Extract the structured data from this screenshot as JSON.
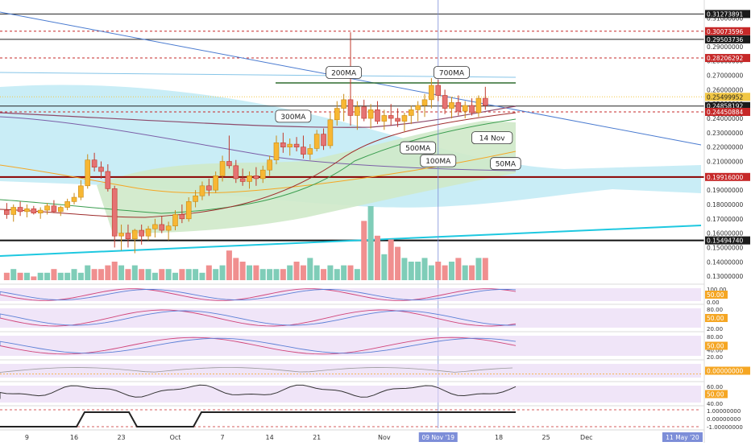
{
  "chart_data": {
    "type": "candlestick",
    "title": "",
    "ylim": [
      0.125,
      0.318
    ],
    "x_tick_labels": [
      {
        "label": "9",
        "day": 9
      },
      {
        "label": "16",
        "day": 16
      },
      {
        "label": "23",
        "day": 23
      },
      {
        "label": "Oct",
        "day": 31
      },
      {
        "label": "7",
        "day": 38
      },
      {
        "label": "14",
        "day": 45
      },
      {
        "label": "21",
        "day": 52
      },
      {
        "label": "Nov",
        "day": 62
      },
      {
        "label": "18",
        "day": 79
      },
      {
        "label": "25",
        "day": 86
      },
      {
        "label": "Dec",
        "day": 92
      }
    ],
    "x_range_days": [
      5,
      109
    ],
    "crosshair": {
      "date_label": "09 Nov '19",
      "day": 70
    },
    "far_date_label": {
      "text": "11 May '20"
    },
    "y_ticks": [
      "0.31000000",
      "0.30000000",
      "0.29000000",
      "0.28000000",
      "0.27000000",
      "0.26000000",
      "0.25000000",
      "0.24000000",
      "0.23000000",
      "0.22000000",
      "0.21000000",
      "0.20000000",
      "0.19000000",
      "0.18000000",
      "0.17000000",
      "0.16000000",
      "0.15000000",
      "0.14000000",
      "0.13000000"
    ],
    "horizontal_levels": [
      {
        "label": "0.31273891",
        "value": 0.31273891,
        "style": "black-solid",
        "badge": "dark"
      },
      {
        "label": "0.30073596",
        "value": 0.30073596,
        "style": "red-dashed",
        "badge": "red"
      },
      {
        "label": "0.29503736",
        "value": 0.29503736,
        "style": "black-solid",
        "badge": "dark"
      },
      {
        "label": "0.28206292",
        "value": 0.28206292,
        "style": "red-dashed",
        "badge": "red"
      },
      {
        "label": "0.25499952",
        "value": 0.25499952,
        "style": "yellow-dotted",
        "badge": "yellow"
      },
      {
        "label": "0.24858192",
        "value": 0.24858192,
        "style": "black-solid",
        "badge": "dark"
      },
      {
        "label": "0.24450884",
        "value": 0.24450884,
        "style": "red-dashed",
        "badge": "red"
      },
      {
        "label": "0.19916000",
        "value": 0.19916,
        "style": "darkred-solid",
        "badge": "red"
      },
      {
        "label": "0.15494740",
        "value": 0.1549474,
        "style": "black-thick",
        "badge": "dark"
      }
    ],
    "annotations": [
      {
        "text": "200MA",
        "day": 56,
        "value": 0.272
      },
      {
        "text": "700MA",
        "day": 72,
        "value": 0.272
      },
      {
        "text": "300MA",
        "day": 48.5,
        "value": 0.2415
      },
      {
        "text": "500MA",
        "day": 67,
        "value": 0.2195
      },
      {
        "text": "14 Nov",
        "day": 78,
        "value": 0.2265
      },
      {
        "text": "100MA",
        "day": 70,
        "value": 0.2105
      },
      {
        "text": "50MA",
        "day": 80,
        "value": 0.2085
      }
    ],
    "candles": [
      {
        "day": 6,
        "o": 0.176,
        "h": 0.181,
        "l": 0.17,
        "c": 0.173
      },
      {
        "day": 7,
        "o": 0.173,
        "h": 0.18,
        "l": 0.168,
        "c": 0.178
      },
      {
        "day": 8,
        "o": 0.178,
        "h": 0.182,
        "l": 0.172,
        "c": 0.175
      },
      {
        "day": 9,
        "o": 0.175,
        "h": 0.18,
        "l": 0.171,
        "c": 0.177
      },
      {
        "day": 10,
        "o": 0.177,
        "h": 0.179,
        "l": 0.173,
        "c": 0.174
      },
      {
        "day": 11,
        "o": 0.174,
        "h": 0.178,
        "l": 0.17,
        "c": 0.176
      },
      {
        "day": 12,
        "o": 0.176,
        "h": 0.181,
        "l": 0.173,
        "c": 0.179
      },
      {
        "day": 13,
        "o": 0.179,
        "h": 0.183,
        "l": 0.174,
        "c": 0.175
      },
      {
        "day": 14,
        "o": 0.175,
        "h": 0.179,
        "l": 0.172,
        "c": 0.178
      },
      {
        "day": 15,
        "o": 0.178,
        "h": 0.184,
        "l": 0.176,
        "c": 0.182
      },
      {
        "day": 16,
        "o": 0.182,
        "h": 0.188,
        "l": 0.18,
        "c": 0.185
      },
      {
        "day": 17,
        "o": 0.185,
        "h": 0.197,
        "l": 0.183,
        "c": 0.193
      },
      {
        "day": 18,
        "o": 0.193,
        "h": 0.215,
        "l": 0.191,
        "c": 0.211
      },
      {
        "day": 19,
        "o": 0.211,
        "h": 0.216,
        "l": 0.203,
        "c": 0.206
      },
      {
        "day": 20,
        "o": 0.206,
        "h": 0.21,
        "l": 0.198,
        "c": 0.203
      },
      {
        "day": 21,
        "o": 0.203,
        "h": 0.208,
        "l": 0.189,
        "c": 0.191
      },
      {
        "day": 22,
        "o": 0.191,
        "h": 0.193,
        "l": 0.15,
        "c": 0.158
      },
      {
        "day": 23,
        "o": 0.158,
        "h": 0.166,
        "l": 0.148,
        "c": 0.16
      },
      {
        "day": 24,
        "o": 0.16,
        "h": 0.166,
        "l": 0.15,
        "c": 0.156
      },
      {
        "day": 25,
        "o": 0.156,
        "h": 0.163,
        "l": 0.146,
        "c": 0.162
      },
      {
        "day": 26,
        "o": 0.162,
        "h": 0.166,
        "l": 0.152,
        "c": 0.158
      },
      {
        "day": 27,
        "o": 0.158,
        "h": 0.165,
        "l": 0.155,
        "c": 0.163
      },
      {
        "day": 28,
        "o": 0.163,
        "h": 0.17,
        "l": 0.157,
        "c": 0.166
      },
      {
        "day": 29,
        "o": 0.166,
        "h": 0.172,
        "l": 0.16,
        "c": 0.162
      },
      {
        "day": 30,
        "o": 0.162,
        "h": 0.168,
        "l": 0.155,
        "c": 0.165
      },
      {
        "day": 31,
        "o": 0.165,
        "h": 0.176,
        "l": 0.162,
        "c": 0.173
      },
      {
        "day": 32,
        "o": 0.173,
        "h": 0.18,
        "l": 0.167,
        "c": 0.17
      },
      {
        "day": 33,
        "o": 0.17,
        "h": 0.185,
        "l": 0.168,
        "c": 0.182
      },
      {
        "day": 34,
        "o": 0.182,
        "h": 0.19,
        "l": 0.178,
        "c": 0.186
      },
      {
        "day": 35,
        "o": 0.186,
        "h": 0.196,
        "l": 0.183,
        "c": 0.193
      },
      {
        "day": 36,
        "o": 0.193,
        "h": 0.198,
        "l": 0.186,
        "c": 0.19
      },
      {
        "day": 37,
        "o": 0.19,
        "h": 0.203,
        "l": 0.188,
        "c": 0.2
      },
      {
        "day": 38,
        "o": 0.2,
        "h": 0.214,
        "l": 0.196,
        "c": 0.21
      },
      {
        "day": 39,
        "o": 0.21,
        "h": 0.228,
        "l": 0.205,
        "c": 0.207
      },
      {
        "day": 40,
        "o": 0.207,
        "h": 0.211,
        "l": 0.195,
        "c": 0.198
      },
      {
        "day": 41,
        "o": 0.198,
        "h": 0.205,
        "l": 0.193,
        "c": 0.196
      },
      {
        "day": 42,
        "o": 0.196,
        "h": 0.203,
        "l": 0.191,
        "c": 0.2
      },
      {
        "day": 43,
        "o": 0.2,
        "h": 0.206,
        "l": 0.193,
        "c": 0.198
      },
      {
        "day": 44,
        "o": 0.198,
        "h": 0.207,
        "l": 0.195,
        "c": 0.204
      },
      {
        "day": 45,
        "o": 0.204,
        "h": 0.214,
        "l": 0.2,
        "c": 0.211
      },
      {
        "day": 46,
        "o": 0.211,
        "h": 0.228,
        "l": 0.208,
        "c": 0.223
      },
      {
        "day": 47,
        "o": 0.223,
        "h": 0.23,
        "l": 0.216,
        "c": 0.22
      },
      {
        "day": 48,
        "o": 0.22,
        "h": 0.226,
        "l": 0.214,
        "c": 0.222
      },
      {
        "day": 49,
        "o": 0.222,
        "h": 0.227,
        "l": 0.217,
        "c": 0.22
      },
      {
        "day": 50,
        "o": 0.22,
        "h": 0.228,
        "l": 0.212,
        "c": 0.215
      },
      {
        "day": 51,
        "o": 0.215,
        "h": 0.222,
        "l": 0.211,
        "c": 0.219
      },
      {
        "day": 52,
        "o": 0.219,
        "h": 0.232,
        "l": 0.217,
        "c": 0.229
      },
      {
        "day": 53,
        "o": 0.229,
        "h": 0.233,
        "l": 0.218,
        "c": 0.221
      },
      {
        "day": 54,
        "o": 0.221,
        "h": 0.244,
        "l": 0.219,
        "c": 0.239
      },
      {
        "day": 55,
        "o": 0.239,
        "h": 0.252,
        "l": 0.235,
        "c": 0.247
      },
      {
        "day": 56,
        "o": 0.247,
        "h": 0.257,
        "l": 0.238,
        "c": 0.253
      },
      {
        "day": 57,
        "o": 0.253,
        "h": 0.3,
        "l": 0.235,
        "c": 0.242
      },
      {
        "day": 58,
        "o": 0.242,
        "h": 0.252,
        "l": 0.232,
        "c": 0.248
      },
      {
        "day": 59,
        "o": 0.248,
        "h": 0.253,
        "l": 0.238,
        "c": 0.24
      },
      {
        "day": 60,
        "o": 0.24,
        "h": 0.25,
        "l": 0.233,
        "c": 0.246
      },
      {
        "day": 61,
        "o": 0.246,
        "h": 0.252,
        "l": 0.236,
        "c": 0.238
      },
      {
        "day": 62,
        "o": 0.238,
        "h": 0.246,
        "l": 0.232,
        "c": 0.242
      },
      {
        "day": 63,
        "o": 0.242,
        "h": 0.25,
        "l": 0.235,
        "c": 0.24
      },
      {
        "day": 64,
        "o": 0.24,
        "h": 0.247,
        "l": 0.234,
        "c": 0.238
      },
      {
        "day": 65,
        "o": 0.238,
        "h": 0.244,
        "l": 0.231,
        "c": 0.242
      },
      {
        "day": 66,
        "o": 0.242,
        "h": 0.249,
        "l": 0.236,
        "c": 0.246
      },
      {
        "day": 67,
        "o": 0.246,
        "h": 0.252,
        "l": 0.238,
        "c": 0.249
      },
      {
        "day": 68,
        "o": 0.249,
        "h": 0.257,
        "l": 0.241,
        "c": 0.253
      },
      {
        "day": 69,
        "o": 0.253,
        "h": 0.268,
        "l": 0.247,
        "c": 0.263
      },
      {
        "day": 70,
        "o": 0.263,
        "h": 0.267,
        "l": 0.252,
        "c": 0.256
      },
      {
        "day": 71,
        "o": 0.256,
        "h": 0.26,
        "l": 0.243,
        "c": 0.247
      },
      {
        "day": 72,
        "o": 0.247,
        "h": 0.255,
        "l": 0.24,
        "c": 0.251
      },
      {
        "day": 73,
        "o": 0.251,
        "h": 0.256,
        "l": 0.242,
        "c": 0.245
      },
      {
        "day": 74,
        "o": 0.245,
        "h": 0.252,
        "l": 0.24,
        "c": 0.249
      },
      {
        "day": 75,
        "o": 0.249,
        "h": 0.254,
        "l": 0.242,
        "c": 0.244
      },
      {
        "day": 76,
        "o": 0.244,
        "h": 0.256,
        "l": 0.241,
        "c": 0.254
      },
      {
        "day": 77,
        "o": 0.254,
        "h": 0.262,
        "l": 0.246,
        "c": 0.249
      }
    ],
    "volume_bars": [
      2,
      3,
      2,
      2,
      1,
      2,
      2,
      3,
      2,
      2,
      3,
      2,
      4,
      3,
      3,
      4,
      5,
      4,
      3,
      4,
      3,
      3,
      2,
      3,
      3,
      2,
      3,
      3,
      3,
      2,
      4,
      3,
      4,
      8,
      6,
      5,
      4,
      4,
      3,
      3,
      3,
      3,
      4,
      5,
      4,
      6,
      4,
      3,
      4,
      3,
      4,
      4,
      3,
      16,
      20,
      12,
      7,
      11,
      9,
      6,
      5,
      5,
      6,
      4,
      5,
      4,
      5,
      6,
      4,
      4,
      6,
      6,
      7,
      5,
      4,
      3,
      2,
      2
    ],
    "panels": [
      {
        "name": "stoch-rsi",
        "ticks": [
          "100.00",
          "50.00",
          "0.00"
        ],
        "badge": "50.00"
      },
      {
        "name": "oscillator-2",
        "ticks": [
          "80.00",
          "50.00",
          "20.00"
        ],
        "badge": "50.00"
      },
      {
        "name": "oscillator-3",
        "ticks": [
          "80.00",
          "50.00",
          "40.00",
          "20.00"
        ],
        "badge": "50.00"
      },
      {
        "name": "histogram",
        "ticks": [],
        "badge": "0.00000000"
      },
      {
        "name": "rsi",
        "ticks": [
          "60.00",
          "50.00",
          "40.00"
        ],
        "badge": "50.00"
      },
      {
        "name": "signal",
        "ticks": [
          "1.00000000",
          "0.00000000",
          "-1.00000000"
        ],
        "badge": ""
      }
    ]
  }
}
